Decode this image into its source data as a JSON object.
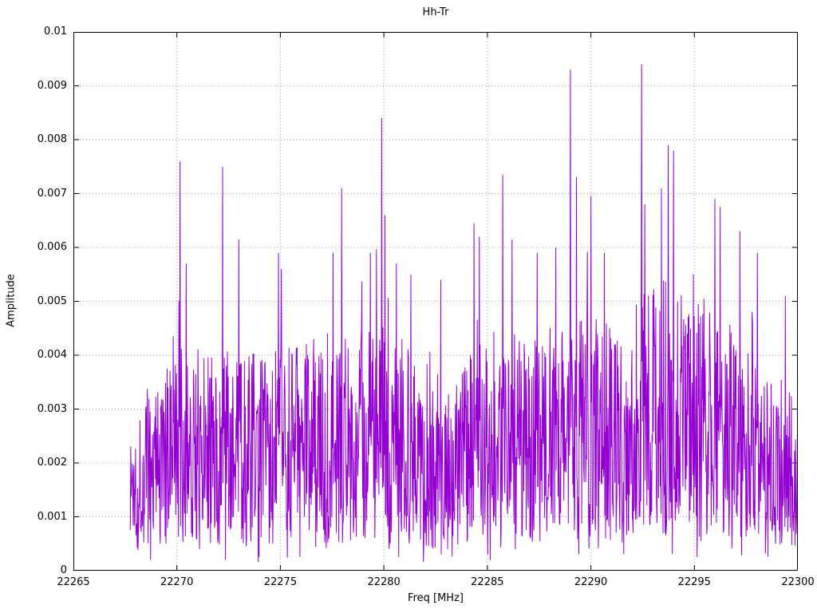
{
  "chart_data": {
    "type": "line",
    "title": "Hh-Tr",
    "xlabel": "Freq [MHz]",
    "ylabel": "Amplitude",
    "xlim": [
      22265,
      22300
    ],
    "ylim": [
      0,
      0.01
    ],
    "x_ticks": [
      22265,
      22270,
      22275,
      22280,
      22285,
      22290,
      22295,
      22300
    ],
    "x_tick_labels": [
      "22265",
      "22270",
      "22275",
      "22280",
      "22285",
      "22290",
      "22295",
      "22300"
    ],
    "y_ticks": [
      0,
      0.001,
      0.002,
      0.003,
      0.004,
      0.005,
      0.006,
      0.007,
      0.008,
      0.009,
      0.01
    ],
    "y_tick_labels": [
      "0",
      "0.001",
      "0.002",
      "0.003",
      "0.004",
      "0.005",
      "0.006",
      "0.007",
      "0.008",
      "0.009",
      "0.01"
    ],
    "grid": true,
    "grid_style": "dotted",
    "grid_color": "#9a9a9a",
    "border_color": "#000000",
    "legend": "none",
    "series": [
      {
        "name": "Hh-Tr",
        "color": "#9400d3",
        "x_start": 22267.75,
        "x_end": 22300,
        "points": 1650,
        "noise": {
          "seed": 1337,
          "min": 0.0005,
          "max": 0.0046,
          "dip_prob": 0.06,
          "dip_factor": 0.35,
          "spike_prob": 0.03,
          "spike_factor": 1.35,
          "y_clamp_max": 0.0095,
          "y_clamp_min": 5e-05
        },
        "envelope": [
          [
            22267.75,
            0.6
          ],
          [
            22268.5,
            0.75
          ],
          [
            22269.5,
            0.82
          ],
          [
            22270.5,
            0.95
          ],
          [
            22272.0,
            0.88
          ],
          [
            22274.0,
            0.9
          ],
          [
            22276.0,
            0.95
          ],
          [
            22278.0,
            0.95
          ],
          [
            22280.0,
            1.0
          ],
          [
            22282.0,
            0.92
          ],
          [
            22283.3,
            0.72
          ],
          [
            22284.0,
            0.85
          ],
          [
            22285.0,
            1.0
          ],
          [
            22287.0,
            0.95
          ],
          [
            22289.0,
            1.05
          ],
          [
            22291.0,
            1.0
          ],
          [
            22293.0,
            1.15
          ],
          [
            22294.0,
            1.2
          ],
          [
            22295.5,
            1.05
          ],
          [
            22296.5,
            1.1
          ],
          [
            22297.5,
            0.95
          ],
          [
            22298.5,
            0.78
          ],
          [
            22299.3,
            0.68
          ],
          [
            22300.0,
            0.78
          ]
        ],
        "peaks": [
          [
            22270.15,
            0.0076
          ],
          [
            22270.45,
            0.0057
          ],
          [
            22272.2,
            0.0075
          ],
          [
            22273.0,
            0.00615
          ],
          [
            22274.9,
            0.0059
          ],
          [
            22277.55,
            0.0059
          ],
          [
            22277.95,
            0.0071
          ],
          [
            22279.35,
            0.0059
          ],
          [
            22279.9,
            0.0084
          ],
          [
            22280.05,
            0.0066
          ],
          [
            22280.6,
            0.0057
          ],
          [
            22281.3,
            0.0055
          ],
          [
            22282.75,
            0.0054
          ],
          [
            22284.35,
            0.00645
          ],
          [
            22284.6,
            0.0062
          ],
          [
            22285.75,
            0.00735
          ],
          [
            22286.2,
            0.00615
          ],
          [
            22287.4,
            0.0059
          ],
          [
            22288.3,
            0.006
          ],
          [
            22289.0,
            0.0093
          ],
          [
            22289.3,
            0.0073
          ],
          [
            22290.0,
            0.00695
          ],
          [
            22290.65,
            0.0059
          ],
          [
            22292.45,
            0.0094
          ],
          [
            22292.6,
            0.0068
          ],
          [
            22293.4,
            0.0071
          ],
          [
            22293.75,
            0.0079
          ],
          [
            22294.0,
            0.0078
          ],
          [
            22294.95,
            0.0055
          ],
          [
            22296.0,
            0.0069
          ],
          [
            22296.25,
            0.00675
          ],
          [
            22297.2,
            0.0063
          ],
          [
            22298.05,
            0.0059
          ],
          [
            22299.4,
            0.0051
          ]
        ]
      }
    ]
  }
}
